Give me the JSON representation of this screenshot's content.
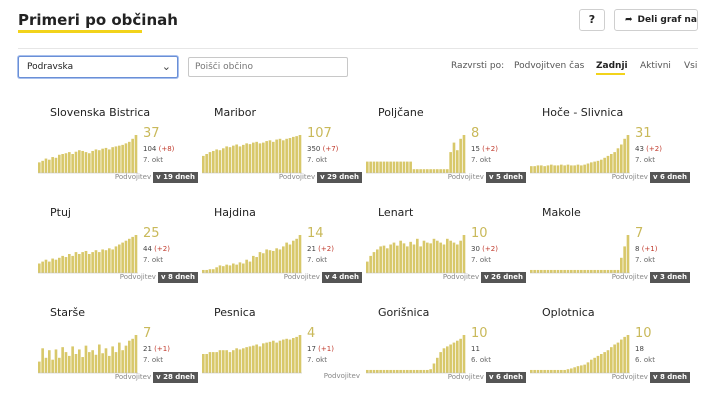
{
  "header": {
    "title": "Primeri po občinah",
    "help_label": "?",
    "share_label": "Deli graf na",
    "share_icon": "share-arrow-icon"
  },
  "controls": {
    "region_select": "Podravska",
    "search_placeholder": "Poišči občino",
    "sort_label": "Razvrsti po:",
    "sort_options": [
      "Podvojitven čas",
      "Zadnji",
      "Aktivni",
      "Vsi"
    ],
    "sort_active": "Zadnji"
  },
  "colors": {
    "bar": "#d8c86a",
    "accent": "#f2d31b",
    "increase": "#c0392b",
    "badge": "#555555"
  },
  "doubling_label": "Podvojitev",
  "municipalities": [
    {
      "name": "Slovenska Bistrica",
      "latest": "37",
      "total": "104",
      "change": "(+8)",
      "date": "7. okt",
      "doubling": "v 19 dneh",
      "bars": [
        0.28,
        0.32,
        0.38,
        0.35,
        0.42,
        0.4,
        0.48,
        0.5,
        0.52,
        0.55,
        0.5,
        0.56,
        0.6,
        0.58,
        0.55,
        0.52,
        0.58,
        0.62,
        0.6,
        0.64,
        0.66,
        0.62,
        0.68,
        0.7,
        0.72,
        0.74,
        0.78,
        0.82,
        0.9,
        1.0
      ]
    },
    {
      "name": "Maribor",
      "latest": "107",
      "total": "350",
      "change": "(+7)",
      "date": "7. okt",
      "doubling": "v 29 dneh",
      "bars": [
        0.45,
        0.5,
        0.55,
        0.58,
        0.62,
        0.6,
        0.65,
        0.7,
        0.68,
        0.72,
        0.75,
        0.7,
        0.74,
        0.78,
        0.76,
        0.8,
        0.82,
        0.78,
        0.8,
        0.84,
        0.86,
        0.82,
        0.88,
        0.9,
        0.86,
        0.9,
        0.92,
        0.95,
        0.97,
        1.0
      ]
    },
    {
      "name": "Poljčane",
      "latest": "8",
      "total": "15",
      "change": "(+2)",
      "date": "7. okt",
      "doubling": "v 5 dneh",
      "bars": [
        0.3,
        0.3,
        0.3,
        0.3,
        0.3,
        0.3,
        0.3,
        0.3,
        0.3,
        0.3,
        0.3,
        0.3,
        0.3,
        0.3,
        0.1,
        0.1,
        0.1,
        0.1,
        0.1,
        0.1,
        0.1,
        0.1,
        0.1,
        0.1,
        0.1,
        0.55,
        0.8,
        0.6,
        0.9,
        1.0
      ]
    },
    {
      "name": "Hoče - Slivnica",
      "latest": "31",
      "total": "43",
      "change": "(+2)",
      "date": "7. okt",
      "doubling": "v 6 dneh",
      "bars": [
        0.18,
        0.18,
        0.2,
        0.2,
        0.18,
        0.2,
        0.22,
        0.2,
        0.2,
        0.22,
        0.2,
        0.22,
        0.2,
        0.2,
        0.22,
        0.2,
        0.22,
        0.25,
        0.28,
        0.3,
        0.32,
        0.35,
        0.4,
        0.45,
        0.5,
        0.55,
        0.65,
        0.75,
        0.9,
        1.0
      ]
    },
    {
      "name": "Ptuj",
      "latest": "25",
      "total": "44",
      "change": "(+2)",
      "date": "7. okt",
      "doubling": "v 8 dneh",
      "bars": [
        0.25,
        0.3,
        0.35,
        0.3,
        0.38,
        0.35,
        0.4,
        0.45,
        0.42,
        0.5,
        0.45,
        0.55,
        0.5,
        0.55,
        0.58,
        0.5,
        0.55,
        0.6,
        0.55,
        0.62,
        0.6,
        0.65,
        0.62,
        0.7,
        0.75,
        0.8,
        0.85,
        0.9,
        0.95,
        1.0
      ]
    },
    {
      "name": "Hajdina",
      "latest": "14",
      "total": "21",
      "change": "(+2)",
      "date": "7. okt",
      "doubling": "v 4 dneh",
      "bars": [
        0.08,
        0.08,
        0.1,
        0.1,
        0.15,
        0.2,
        0.18,
        0.22,
        0.2,
        0.25,
        0.22,
        0.28,
        0.25,
        0.35,
        0.3,
        0.45,
        0.42,
        0.55,
        0.52,
        0.62,
        0.6,
        0.58,
        0.65,
        0.62,
        0.7,
        0.8,
        0.75,
        0.85,
        0.9,
        1.0
      ]
    },
    {
      "name": "Lenart",
      "latest": "10",
      "total": "30",
      "change": "(+2)",
      "date": "7. okt",
      "doubling": "v 26 dneh",
      "bars": [
        0.3,
        0.45,
        0.55,
        0.62,
        0.7,
        0.72,
        0.65,
        0.75,
        0.8,
        0.72,
        0.85,
        0.78,
        0.7,
        0.82,
        0.75,
        0.9,
        0.7,
        0.85,
        0.8,
        0.78,
        0.9,
        0.85,
        0.8,
        0.75,
        0.9,
        0.85,
        0.8,
        0.75,
        0.85,
        1.0
      ]
    },
    {
      "name": "Makole",
      "latest": "7",
      "total": "8",
      "change": "(+1)",
      "date": "7. okt",
      "doubling": "v 3 dneh",
      "bars": [
        0.08,
        0.08,
        0.08,
        0.08,
        0.08,
        0.08,
        0.08,
        0.08,
        0.08,
        0.08,
        0.08,
        0.08,
        0.08,
        0.08,
        0.08,
        0.08,
        0.08,
        0.08,
        0.08,
        0.08,
        0.08,
        0.08,
        0.08,
        0.08,
        0.08,
        0.08,
        0.08,
        0.4,
        0.7,
        1.0
      ]
    },
    {
      "name": "Starše",
      "latest": "7",
      "total": "21",
      "change": "(+1)",
      "date": "7. okt",
      "doubling": "v 28 dneh",
      "bars": [
        0.3,
        0.65,
        0.4,
        0.6,
        0.35,
        0.62,
        0.4,
        0.68,
        0.55,
        0.45,
        0.7,
        0.5,
        0.62,
        0.42,
        0.72,
        0.55,
        0.6,
        0.48,
        0.75,
        0.52,
        0.65,
        0.45,
        0.7,
        0.55,
        0.8,
        0.6,
        0.72,
        0.85,
        0.9,
        1.0
      ]
    },
    {
      "name": "Pesnica",
      "latest": "4",
      "total": "17",
      "change": "(+1)",
      "date": "7. okt",
      "doubling": "",
      "bars": [
        0.5,
        0.5,
        0.55,
        0.55,
        0.55,
        0.6,
        0.6,
        0.6,
        0.55,
        0.6,
        0.65,
        0.62,
        0.65,
        0.68,
        0.7,
        0.72,
        0.75,
        0.7,
        0.78,
        0.8,
        0.82,
        0.85,
        0.8,
        0.85,
        0.88,
        0.9,
        0.88,
        0.92,
        0.95,
        1.0
      ]
    },
    {
      "name": "Gorišnica",
      "latest": "10",
      "total": "11",
      "change": "",
      "date": "6. okt",
      "doubling": "v 6 dneh",
      "bars": [
        0.08,
        0.08,
        0.08,
        0.08,
        0.08,
        0.08,
        0.08,
        0.08,
        0.08,
        0.08,
        0.08,
        0.08,
        0.08,
        0.08,
        0.08,
        0.08,
        0.08,
        0.08,
        0.08,
        0.1,
        0.25,
        0.4,
        0.55,
        0.65,
        0.7,
        0.75,
        0.8,
        0.85,
        0.9,
        1.0
      ]
    },
    {
      "name": "Oplotnica",
      "latest": "10",
      "total": "18",
      "change": "",
      "date": "6. okt",
      "doubling": "v 8 dneh",
      "bars": [
        0.08,
        0.08,
        0.08,
        0.08,
        0.08,
        0.08,
        0.08,
        0.08,
        0.08,
        0.08,
        0.08,
        0.1,
        0.12,
        0.15,
        0.18,
        0.2,
        0.22,
        0.28,
        0.35,
        0.4,
        0.45,
        0.5,
        0.55,
        0.6,
        0.68,
        0.75,
        0.8,
        0.88,
        0.95,
        1.0
      ]
    }
  ]
}
